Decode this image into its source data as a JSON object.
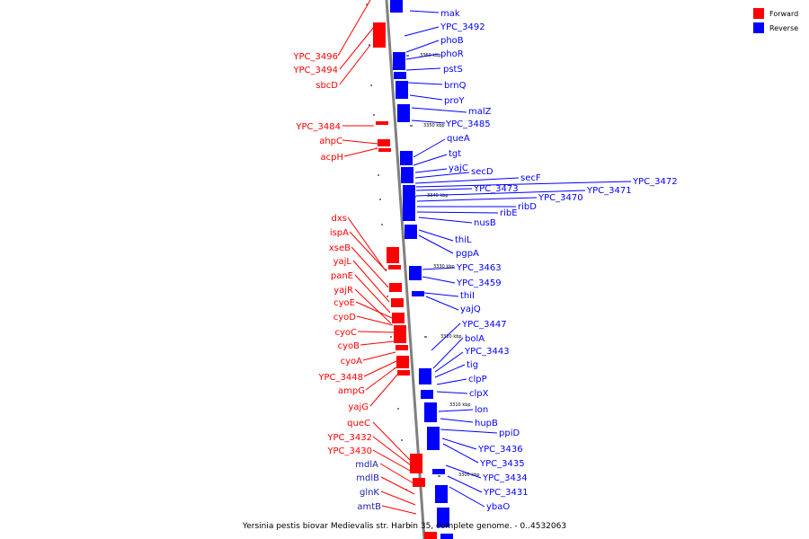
{
  "caption": "Yersinia pestis biovar Medievalis str. Harbin 35, complete genome. - 0..4532063",
  "legend": [
    {
      "label": "Forward",
      "color": "#ff0000"
    },
    {
      "label": "Reverse",
      "color": "#0000ff"
    }
  ],
  "colors": {
    "forward": "#ff0000",
    "reverse": "#0000ff",
    "backbone": "#808080"
  },
  "scale_labels": [
    "3360 kbp",
    "3350 kbp",
    "3340 kbp",
    "3330 kbp",
    "3320 kbp",
    "3310 kbp",
    "3300 kbp"
  ],
  "forward_genes": [
    "YPC_3496",
    "YPC_3494",
    "sbcD",
    "YPC_3484",
    "ahpC",
    "acpH",
    "dxs",
    "ispA",
    "xseB",
    "yajL",
    "panE",
    "yajR",
    "cyoE",
    "cyoD",
    "cyoC",
    "cyoB",
    "cyoA",
    "YPC_3448",
    "ampG",
    "yajG",
    "queC",
    "YPC_3432",
    "YPC_3430",
    "mdlA",
    "mdlB",
    "glnK",
    "amtB"
  ],
  "reverse_genes": [
    "mak",
    "YPC_3492",
    "phoB",
    "phoR",
    "pstS",
    "brnQ",
    "proY",
    "malZ",
    "YPC_3485",
    "queA",
    "tgt",
    "yajC",
    "secD",
    "secF",
    "YPC_3472",
    "YPC_3473",
    "YPC_3471",
    "YPC_3470",
    "ribD",
    "ribE",
    "nusB",
    "thiL",
    "pgpA",
    "YPC_3463",
    "YPC_3459",
    "thiI",
    "yajQ",
    "YPC_3447",
    "bolA",
    "YPC_3443",
    "tig",
    "clpP",
    "clpX",
    "lon",
    "hupB",
    "ppiD",
    "YPC_3436",
    "YPC_3435",
    "YPC_3434",
    "YPC_3431",
    "ybaO"
  ]
}
